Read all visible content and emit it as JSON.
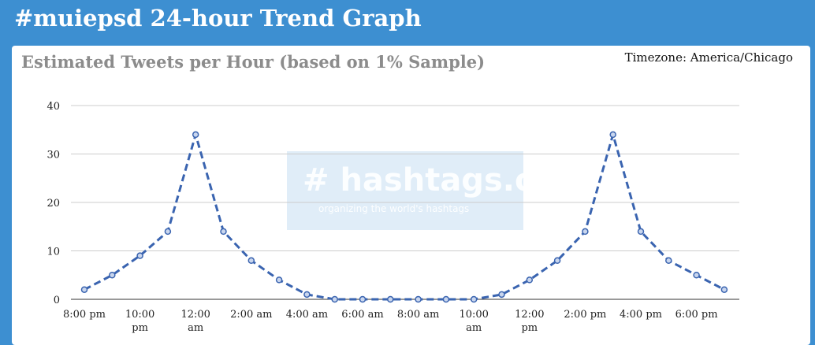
{
  "header": {
    "title": "#muiepsd 24-hour Trend Graph"
  },
  "chart_card": {
    "title": "Estimated Tweets per Hour (based on 1% Sample)",
    "timezone": "Timezone: America/Chicago"
  },
  "watermark": {
    "logo": "# hashtags.org",
    "tagline": "organizing the world's hashtags"
  },
  "colors": {
    "background": "#3d8fd1",
    "line": "#3a64b0",
    "grid": "#cccccc",
    "title_gray": "#8c8c8c"
  },
  "chart_data": {
    "type": "line",
    "title": "Estimated Tweets per Hour (based on 1% Sample)",
    "ylim": [
      0,
      40
    ],
    "yticks": [
      0,
      10,
      20,
      30,
      40
    ],
    "line_style": "dashed with circle markers",
    "grid": "horizontal",
    "x_tick_labels": [
      [
        "8:00 pm"
      ],
      [
        "10:00",
        "pm"
      ],
      [
        "12:00",
        "am"
      ],
      [
        "2:00 am"
      ],
      [
        "4:00 am"
      ],
      [
        "6:00 am"
      ],
      [
        "8:00 am"
      ],
      [
        "10:00",
        "am"
      ],
      [
        "12:00",
        "pm"
      ],
      [
        "2:00 pm"
      ],
      [
        "4:00 pm"
      ],
      [
        "6:00 pm"
      ]
    ],
    "series": [
      {
        "values": [
          2,
          5,
          9,
          14,
          34,
          14,
          8,
          4,
          1,
          0,
          0,
          0,
          0,
          0,
          0,
          1,
          4,
          8,
          14,
          34,
          14,
          8,
          5,
          2
        ]
      }
    ]
  }
}
